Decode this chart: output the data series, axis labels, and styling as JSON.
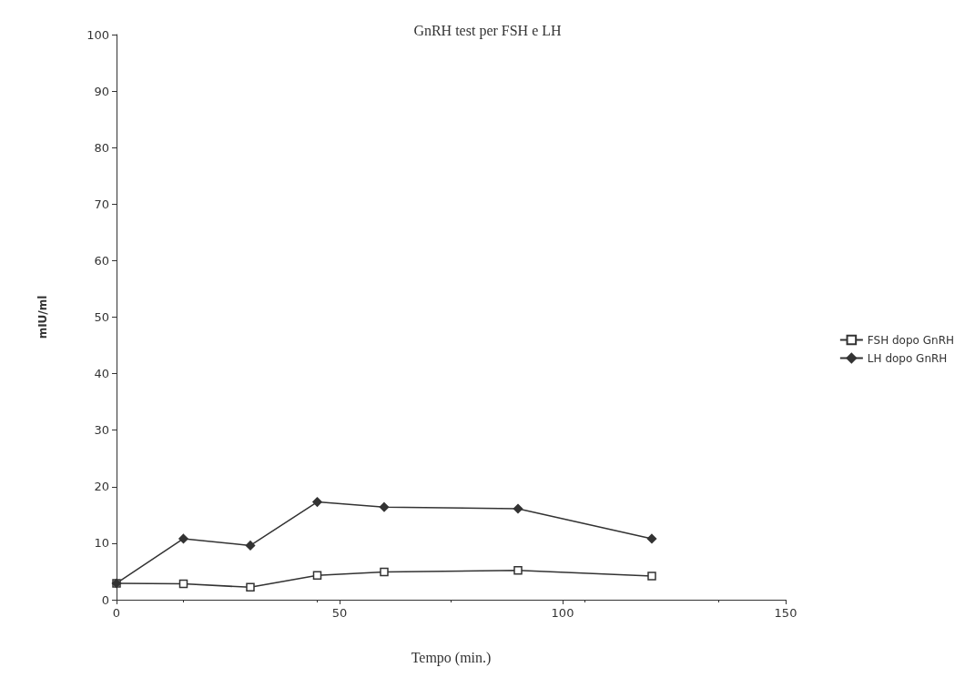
{
  "chart_data": {
    "type": "line",
    "title": "GnRH test per FSH e LH",
    "xlabel": "Tempo (min.)",
    "ylabel": "mIU/ml",
    "x": [
      0,
      15,
      30,
      45,
      60,
      90,
      120
    ],
    "series": [
      {
        "name": "FSH dopo GnRH",
        "color": "#333333",
        "marker": "square",
        "values": [
          2.9,
          2.8,
          2.2,
          4.3,
          4.9,
          5.2,
          4.2
        ]
      },
      {
        "name": "LH dopo GnRH",
        "color": "#333333",
        "marker": "diamond",
        "values": [
          2.9,
          10.8,
          9.6,
          17.3,
          16.4,
          16.1,
          10.8
        ]
      }
    ],
    "xlim": [
      0,
      150
    ],
    "xticks": [
      0,
      50,
      100,
      150
    ],
    "ylim": [
      0,
      100
    ],
    "yticks": [
      0,
      10,
      20,
      30,
      40,
      50,
      60,
      70,
      80,
      90,
      100
    ],
    "grid": false,
    "legend": "right",
    "line_style": "solid"
  }
}
